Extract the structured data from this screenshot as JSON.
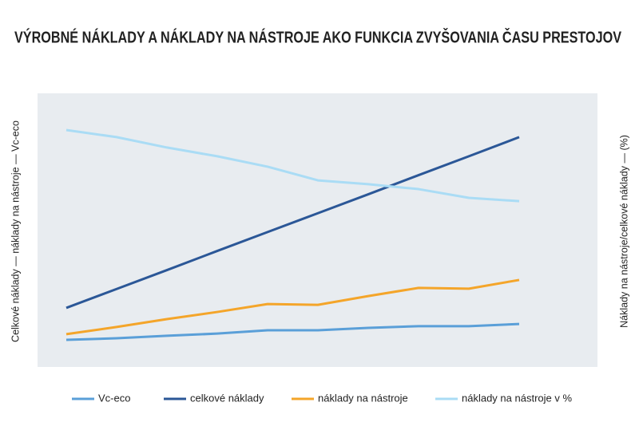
{
  "chart_data": {
    "type": "line",
    "title": "VÝROBNÉ NÁKLADY A NÁKLADY NA NÁSTROJE AKO FUNKCIA ZVYŠOVANIA ČASU PRESTOJOV",
    "y_label": "Celkové náklady — náklady na nástroje — Vc-eco",
    "y2_label": "Náklady na nástroje/celkové náklady — (%)",
    "categories": [
      null,
      null,
      null,
      null,
      null,
      null,
      null,
      null,
      null,
      null
    ],
    "ylim": [
      0,
      100
    ],
    "series": [
      {
        "name": "Vc-eco",
        "color": "#5a9fd8",
        "values": [
          9.9,
          10.5,
          11.4,
          12.2,
          13.4,
          13.4,
          14.3,
          14.9,
          14.9,
          15.7
        ]
      },
      {
        "name": "celkové náklady",
        "color": "#2b5797",
        "values": [
          21.6,
          28.5,
          35.4,
          42.4,
          49.3,
          56.2,
          63.1,
          70.1,
          77.0,
          84.0
        ]
      },
      {
        "name": "náklady na nástroje",
        "color": "#f4a52a",
        "values": [
          12.0,
          14.6,
          17.5,
          20.1,
          23.0,
          22.7,
          25.9,
          28.9,
          28.6,
          31.8
        ]
      },
      {
        "name": "náklady na nástroje v %",
        "color": "#aadcf5",
        "values": [
          86.6,
          84.0,
          80.2,
          77.0,
          73.2,
          68.2,
          66.8,
          65.0,
          61.8,
          60.6
        ]
      }
    ]
  }
}
